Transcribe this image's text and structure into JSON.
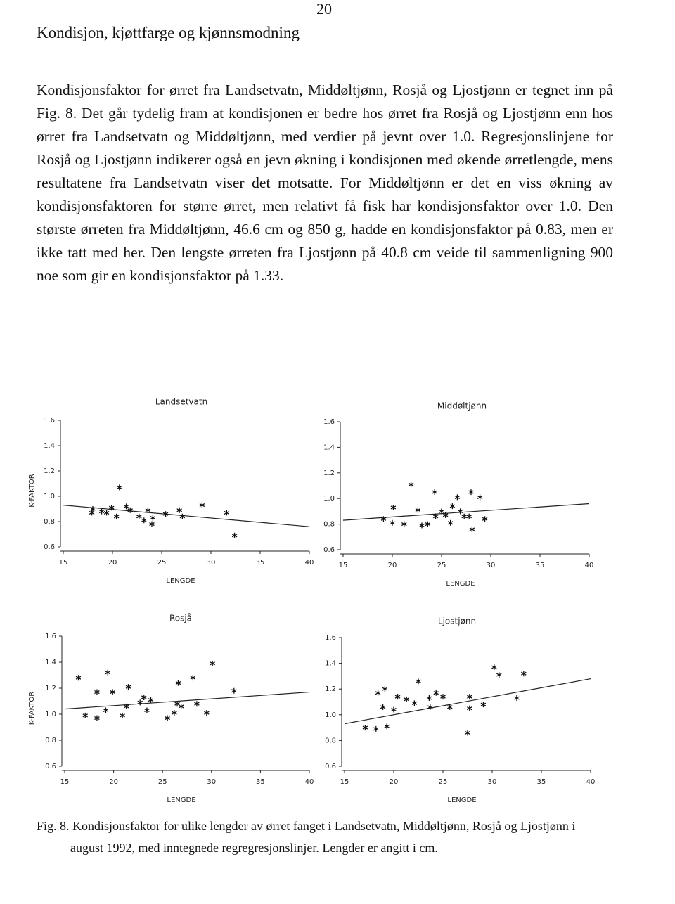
{
  "page_number": "20",
  "heading": "Kondisjon, kjøttfarge og kjønnsmodning",
  "paragraph": "Kondisjonsfaktor for ørret fra Landsetvatn, Middøltjønn, Rosjå og Ljostjønn er tegnet inn på Fig. 8. Det går tydelig fram at kondisjonen er bedre hos ørret fra Rosjå og Ljostjønn enn hos ørret fra Landsetvatn og Middøltjønn, med verdier på jevnt over 1.0. Regresjonslinjene for Rosjå og Ljostjønn indikerer også en jevn økning i kondisjonen med økende ørretlengde, mens resultatene fra Landsetvatn viser det motsatte. For Middøltjønn er det en viss økning av kondisjonsfaktoren for større ørret, men relativt få fisk har kondisjonsfaktor over 1.0. Den største ørreten fra Middøltjønn, 46.6 cm og 850 g, hadde en kondisjonsfaktor på 0.83, men er ikke tatt med her. Den lengste ørreten fra Ljostjønn på 40.8 cm veide til sammenligning 900 noe som gir en kondisjonsfaktor på 1.33.",
  "caption": "Fig. 8. Kondisjonsfaktor for ulike lengder av ørret fanget i Landsetvatn, Middøltjønn, Rosjå og Ljostjønn i august 1992, med inntegnede regregresjonslinjer. Lengder er angitt i cm.",
  "chart_data": [
    {
      "type": "scatter",
      "title": "Landsetvatn",
      "x_label": "LENGDE",
      "y_label": "K-FAKTOR",
      "x": [
        17.9,
        18.9,
        19.4,
        19.9,
        20.4,
        21.4,
        21.8,
        22.7,
        23.2,
        23.6,
        24,
        24.1,
        25.4,
        26.8,
        27.1,
        29.1,
        31.6,
        32.4,
        20.7,
        18
      ],
      "values": [
        0.87,
        0.88,
        0.87,
        0.91,
        0.84,
        0.92,
        0.89,
        0.84,
        0.81,
        0.89,
        0.78,
        0.83,
        0.86,
        0.89,
        0.84,
        0.93,
        0.87,
        0.69,
        1.07,
        0.9
      ],
      "regression": {
        "x": [
          15,
          40
        ],
        "y": [
          0.93,
          0.76
        ]
      },
      "xlim": [
        15,
        40
      ],
      "xticks": [
        15,
        20,
        25,
        30,
        35,
        40
      ],
      "ylim": [
        0.6,
        1.6
      ],
      "yticks": [
        0.6,
        0.8,
        {
          "value": 1,
          "label": "1.0"
        },
        1.2,
        1.4,
        1.6
      ]
    },
    {
      "type": "scatter",
      "title": "Middøltjønn",
      "x_label": "LENGDE",
      "x": [
        21.9,
        24.3,
        26.6,
        28,
        28.9,
        20.1,
        22.6,
        19.1,
        20,
        21.2,
        23,
        24.4,
        25,
        25.4,
        26.1,
        26.9,
        27.3,
        27.8,
        28.1,
        29.4,
        25.9,
        23.6
      ],
      "values": [
        1.11,
        1.05,
        1.01,
        1.05,
        1.01,
        0.93,
        0.91,
        0.84,
        0.81,
        0.8,
        0.79,
        0.86,
        0.9,
        0.87,
        0.94,
        0.9,
        0.86,
        0.86,
        0.76,
        0.84,
        0.81,
        0.8
      ],
      "regression": {
        "x": [
          15,
          40
        ],
        "y": [
          0.83,
          0.96
        ]
      },
      "xlim": [
        15,
        40
      ],
      "xticks": [
        15,
        20,
        25,
        30,
        35,
        40
      ],
      "ylim": [
        0.6,
        1.6
      ],
      "yticks": [
        0.6,
        0.8,
        {
          "value": 1,
          "label": "1.0"
        },
        1.2,
        1.4,
        1.6
      ]
    },
    {
      "type": "scatter",
      "title": "Rosjå",
      "x_label": "LENGDE",
      "y_label": "K-FAKTOR",
      "x": [
        16.4,
        19.4,
        30.1,
        28.1,
        26.6,
        18.3,
        19.9,
        21.5,
        23.1,
        23.8,
        22.7,
        21.3,
        19.2,
        17.1,
        18.3,
        20.9,
        23.4,
        25.5,
        26.2,
        26.9,
        28.5,
        29.5,
        32.3,
        26.5
      ],
      "values": [
        1.28,
        1.32,
        1.39,
        1.28,
        1.24,
        1.17,
        1.17,
        1.21,
        1.13,
        1.11,
        1.09,
        1.06,
        1.03,
        0.99,
        0.97,
        0.99,
        1.03,
        0.97,
        1.01,
        1.06,
        1.08,
        1.01,
        1.18,
        1.08
      ],
      "regression": {
        "x": [
          15,
          40
        ],
        "y": [
          1.04,
          1.17
        ]
      },
      "xlim": [
        15,
        40
      ],
      "xticks": [
        15,
        20,
        25,
        30,
        35,
        40
      ],
      "ylim": [
        0.6,
        1.6
      ],
      "yticks": [
        0.6,
        0.8,
        {
          "value": 1,
          "label": "1.0"
        },
        1.2,
        1.4,
        1.6
      ]
    },
    {
      "type": "scatter",
      "title": "Ljostjønn",
      "x_label": "LENGDE",
      "x": [
        30.2,
        30.7,
        33.2,
        18.4,
        19.1,
        22.5,
        24.3,
        20.4,
        21.3,
        23.6,
        25,
        18.9,
        20,
        22.1,
        23.7,
        25.7,
        27.7,
        29.1,
        32.5,
        17.1,
        18.2,
        19.3,
        27.5,
        27.7
      ],
      "values": [
        1.37,
        1.31,
        1.32,
        1.17,
        1.2,
        1.26,
        1.17,
        1.14,
        1.12,
        1.13,
        1.14,
        1.06,
        1.04,
        1.09,
        1.06,
        1.06,
        1.05,
        1.08,
        1.13,
        0.9,
        0.89,
        0.91,
        0.86,
        1.14
      ],
      "regression": {
        "x": [
          15,
          40
        ],
        "y": [
          0.93,
          1.28
        ]
      },
      "xlim": [
        15,
        40
      ],
      "xticks": [
        15,
        20,
        25,
        30,
        35,
        40
      ],
      "ylim": [
        0.6,
        1.6
      ],
      "yticks": [
        0.6,
        0.8,
        {
          "value": 1,
          "label": "1.0"
        },
        1.2,
        1.4,
        1.6
      ]
    }
  ]
}
